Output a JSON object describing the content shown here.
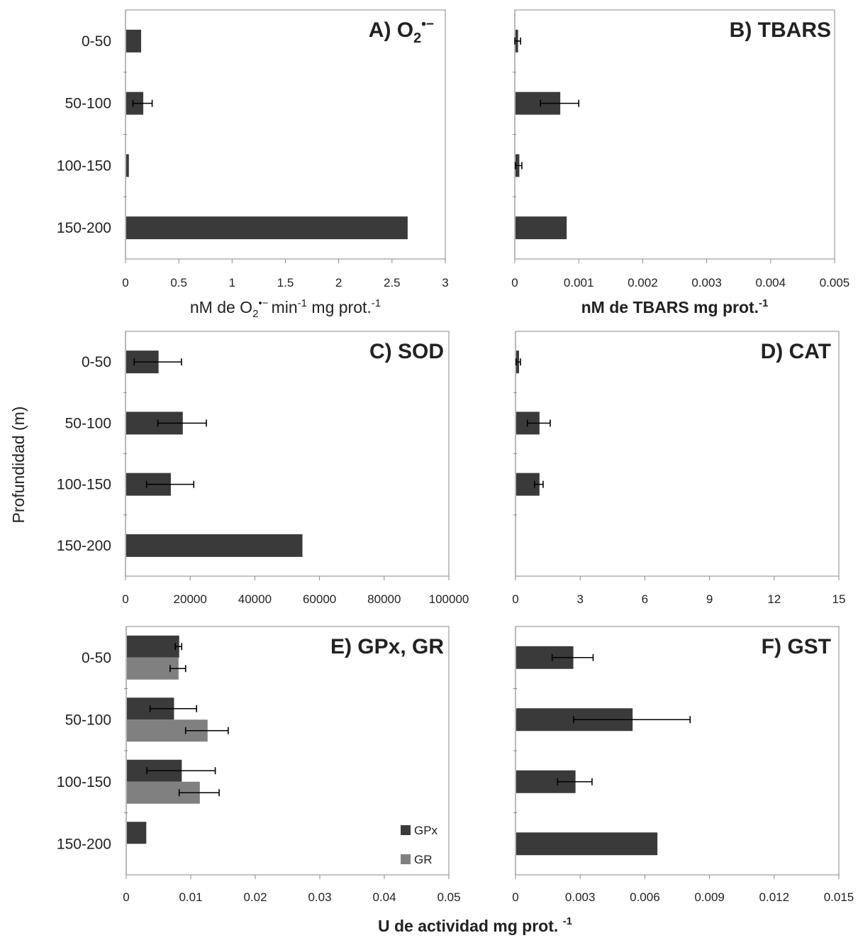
{
  "figure": {
    "ylabel": "Profundidad (m)",
    "shared_xlabel": {
      "main": "U de actividad mg prot.",
      "sup": "-1"
    },
    "bar_color": "#3a3a3a",
    "gr_color": "#808080"
  },
  "chart_data": [
    {
      "type": "bar",
      "orientation": "horizontal",
      "title": {
        "main": "A) O",
        "sub": "2",
        "sup": "•−"
      },
      "xlabel": {
        "parts": [
          {
            "t": "nM de O"
          },
          {
            "t": "2",
            "s": "sub"
          },
          {
            "t": "•− ",
            "s": "sup"
          },
          {
            "t": "min"
          },
          {
            "t": "-1",
            "s": "sup"
          },
          {
            "t": " mg prot."
          },
          {
            "t": "-1",
            "s": "sup"
          }
        ]
      },
      "categories": [
        "0-50",
        "50-100",
        "100-150",
        "150-200"
      ],
      "xlim": [
        0,
        3
      ],
      "xticks": [
        0,
        0.5,
        1,
        1.5,
        2,
        2.5,
        3
      ],
      "tick_labels": [
        "0",
        "0.5",
        "1",
        "1.5",
        "2",
        "2.5",
        "3"
      ],
      "series": [
        {
          "values": [
            0.14,
            0.16,
            0.025,
            2.64
          ],
          "errors": [
            null,
            0.09,
            null,
            null
          ]
        }
      ]
    },
    {
      "type": "bar",
      "orientation": "horizontal",
      "title": {
        "main": "B) TBARS"
      },
      "xlabel": {
        "bold": true,
        "parts": [
          {
            "t": "nM de TBARS mg prot."
          },
          {
            "t": "-1",
            "s": "sup"
          }
        ]
      },
      "categories": [
        "0-50",
        "50-100",
        "100-150",
        "150-200"
      ],
      "xlim": [
        0,
        0.005
      ],
      "xticks": [
        0,
        0.001,
        0.002,
        0.003,
        0.004,
        0.005
      ],
      "tick_labels": [
        "0",
        "0.001",
        "0.002",
        "0.003",
        "0.004",
        "0.005"
      ],
      "series": [
        {
          "values": [
            4e-05,
            0.0007,
            6e-05,
            0.0008
          ],
          "errors": [
            5e-05,
            0.0003,
            5e-05,
            null
          ]
        }
      ]
    },
    {
      "type": "bar",
      "orientation": "horizontal",
      "title": {
        "main": "C) SOD"
      },
      "categories": [
        "0-50",
        "50-100",
        "100-150",
        "150-200"
      ],
      "xlim": [
        0,
        100000
      ],
      "xticks": [
        0,
        20000,
        40000,
        60000,
        80000,
        100000
      ],
      "tick_labels": [
        "0",
        "20000",
        "40000",
        "60000",
        "80000",
        "100000"
      ],
      "series": [
        {
          "values": [
            10000,
            17500,
            13800,
            54500
          ],
          "errors": [
            7300,
            7500,
            7300,
            null
          ]
        }
      ]
    },
    {
      "type": "bar",
      "orientation": "horizontal",
      "title": {
        "main": "D) CAT"
      },
      "categories": [
        "0-50",
        "50-100",
        "100-150",
        "150-200"
      ],
      "xlim": [
        0,
        15
      ],
      "xticks": [
        0,
        3,
        6,
        9,
        12,
        15
      ],
      "tick_labels": [
        "0",
        "3",
        "6",
        "9",
        "12",
        "15"
      ],
      "series": [
        {
          "values": [
            0.13,
            1.08,
            1.08,
            0
          ],
          "errors": [
            0.1,
            0.53,
            0.2,
            null
          ]
        }
      ]
    },
    {
      "type": "bar",
      "orientation": "horizontal",
      "title": {
        "main": "E) GPx, GR"
      },
      "categories": [
        "0-50",
        "50-100",
        "100-150",
        "150-200"
      ],
      "xlim": [
        0,
        0.05
      ],
      "xticks": [
        0,
        0.01,
        0.02,
        0.03,
        0.04,
        0.05
      ],
      "tick_labels": [
        "0",
        "0.01",
        "0.02",
        "0.03",
        "0.04",
        "0.05"
      ],
      "legend": "lower-right",
      "series": [
        {
          "name": "GPx",
          "color": "#3a3a3a",
          "values": [
            0.0081,
            0.0073,
            0.0085,
            0.003
          ],
          "errors": [
            0.0005,
            0.0036,
            0.0053,
            null
          ]
        },
        {
          "name": "GR",
          "color": "#808080",
          "values": [
            0.008,
            0.0125,
            0.0113,
            0
          ],
          "errors": [
            0.0012,
            0.0033,
            0.0031,
            null
          ]
        }
      ]
    },
    {
      "type": "bar",
      "orientation": "horizontal",
      "title": {
        "main": "F) GST"
      },
      "categories": [
        "0-50",
        "50-100",
        "100-150",
        "150-200"
      ],
      "xlim": [
        0,
        0.015
      ],
      "xticks": [
        0,
        0.003,
        0.006,
        0.009,
        0.012,
        0.015
      ],
      "tick_labels": [
        "0",
        "0.003",
        "0.006",
        "0.009",
        "0.012",
        "0.015"
      ],
      "series": [
        {
          "values": [
            0.00265,
            0.0054,
            0.00275,
            0.00655
          ],
          "errors": [
            0.00095,
            0.0027,
            0.0008,
            null
          ]
        }
      ]
    }
  ]
}
